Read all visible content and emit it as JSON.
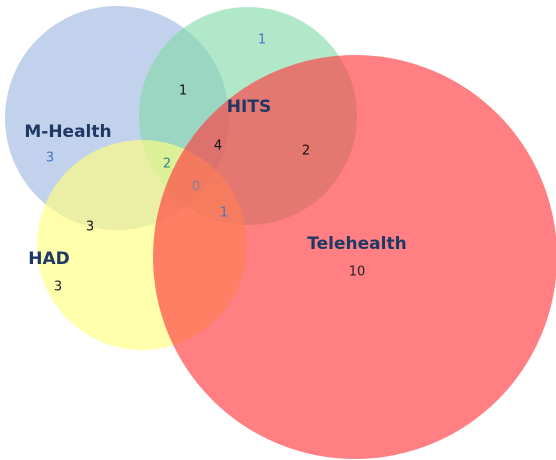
{
  "sets": [
    {
      "label": "M-Health",
      "count": 3
    },
    {
      "label": "HITS",
      "count": 1
    },
    {
      "label": "HAD",
      "count": 3
    },
    {
      "label": "Telehealth",
      "count": 10
    }
  ],
  "overlaps": [
    {
      "sets": "M-Health, HITS",
      "count": 1
    },
    {
      "sets": "M-Health, HITS, Telehealth",
      "count": 4
    },
    {
      "sets": "HITS, Telehealth",
      "count": 2
    },
    {
      "sets": "M-Health, HITS, HAD",
      "count": 2
    },
    {
      "sets": "M-Health, HITS, HAD, Telehealth",
      "count": 0
    },
    {
      "sets": "HITS, HAD, Telehealth",
      "count": 1
    },
    {
      "sets": "M-Health, HAD",
      "count": 3
    }
  ]
}
